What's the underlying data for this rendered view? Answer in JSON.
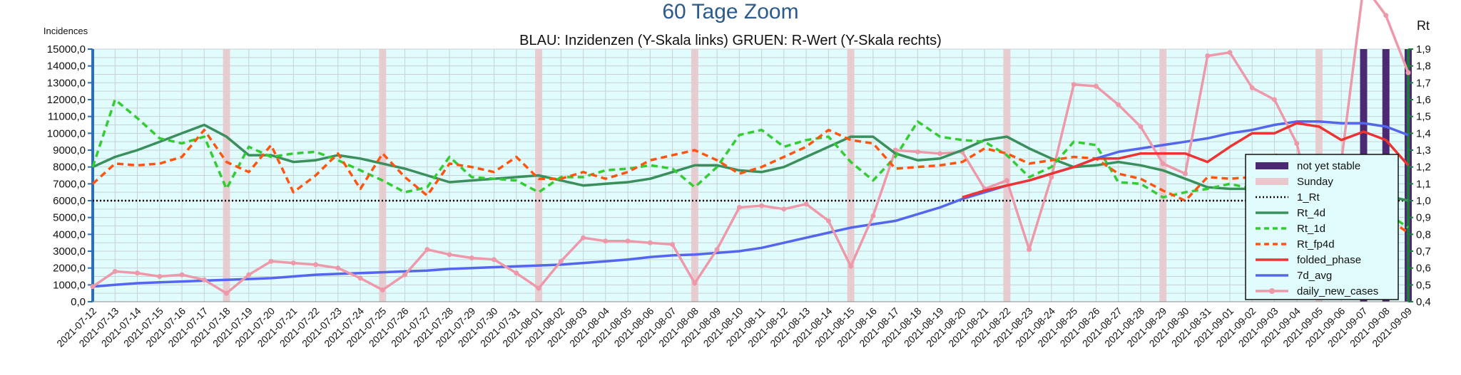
{
  "chart_data": {
    "type": "line",
    "title": "60 Tage Zoom",
    "subtitle": "BLAU: Inzidenzen (Y-Skala links)     GRUEN: R-Wert (Y-Skala rechts)",
    "ylabel_left": "Incidences",
    "ylabel_right": "Rt",
    "ylim_left": [
      0,
      15000
    ],
    "ylim_right": [
      0.4,
      1.9
    ],
    "y_ticks_left": [
      "0,0",
      "1000,0",
      "2000,0",
      "3000,0",
      "4000,0",
      "5000,0",
      "6000,0",
      "7000,0",
      "8000,0",
      "9000,0",
      "10000,0",
      "11000,0",
      "12000,0",
      "13000,0",
      "14000,0",
      "15000,0"
    ],
    "y_ticks_right": [
      "0,4",
      "0,5",
      "0,6",
      "0,7",
      "0,8",
      "0,9",
      "1,0",
      "1,1",
      "1,2",
      "1,3",
      "1,4",
      "1,5",
      "1,6",
      "1,7",
      "1,8",
      "1,9"
    ],
    "categories": [
      "2021-07-12",
      "2021-07-13",
      "2021-07-14",
      "2021-07-15",
      "2021-07-16",
      "2021-07-17",
      "2021-07-18",
      "2021-07-19",
      "2021-07-20",
      "2021-07-21",
      "2021-07-22",
      "2021-07-23",
      "2021-07-24",
      "2021-07-25",
      "2021-07-26",
      "2021-07-27",
      "2021-07-28",
      "2021-07-29",
      "2021-07-30",
      "2021-07-31",
      "2021-08-01",
      "2021-08-02",
      "2021-08-03",
      "2021-08-04",
      "2021-08-05",
      "2021-08-06",
      "2021-08-07",
      "2021-08-08",
      "2021-08-09",
      "2021-08-10",
      "2021-08-11",
      "2021-08-12",
      "2021-08-13",
      "2021-08-14",
      "2021-08-15",
      "2021-08-16",
      "2021-08-17",
      "2021-08-18",
      "2021-08-19",
      "2021-08-20",
      "2021-08-21",
      "2021-08-22",
      "2021-08-23",
      "2021-08-24",
      "2021-08-25",
      "2021-08-26",
      "2021-08-27",
      "2021-08-28",
      "2021-08-29",
      "2021-08-30",
      "2021-08-31",
      "2021-09-01",
      "2021-09-02",
      "2021-09-03",
      "2021-09-04",
      "2021-09-05",
      "2021-09-06",
      "2021-09-07",
      "2021-09-08",
      "2021-09-09"
    ],
    "sundays": [
      "2021-07-18",
      "2021-07-25",
      "2021-08-01",
      "2021-08-08",
      "2021-08-15",
      "2021-08-22",
      "2021-08-29",
      "2021-09-05"
    ],
    "not_yet_stable": [
      "2021-09-07",
      "2021-09-08",
      "2021-09-09"
    ],
    "legend_position": "right",
    "grid": true,
    "series": [
      {
        "name": "not yet stable",
        "axis": "none",
        "style": "band",
        "color": "#4b2a73"
      },
      {
        "name": "Sunday",
        "axis": "none",
        "style": "band",
        "color": "#e8c8cc"
      },
      {
        "name": "1_Rt",
        "axis": "right",
        "style": "dotted",
        "color": "#000000",
        "values": [
          1,
          1,
          1,
          1,
          1,
          1,
          1,
          1,
          1,
          1,
          1,
          1,
          1,
          1,
          1,
          1,
          1,
          1,
          1,
          1,
          1,
          1,
          1,
          1,
          1,
          1,
          1,
          1,
          1,
          1,
          1,
          1,
          1,
          1,
          1,
          1,
          1,
          1,
          1,
          1,
          1,
          1,
          1,
          1,
          1,
          1,
          1,
          1,
          1,
          1,
          1,
          1,
          1,
          1,
          1,
          1,
          1,
          1,
          1,
          1
        ]
      },
      {
        "name": "Rt_4d",
        "axis": "right",
        "style": "solid",
        "color": "#3a8f5c",
        "values": [
          1.2,
          1.26,
          1.3,
          1.35,
          1.4,
          1.45,
          1.38,
          1.27,
          1.27,
          1.23,
          1.24,
          1.27,
          1.25,
          1.22,
          1.19,
          1.15,
          1.11,
          1.12,
          1.13,
          1.14,
          1.15,
          1.12,
          1.09,
          1.1,
          1.11,
          1.13,
          1.17,
          1.21,
          1.21,
          1.18,
          1.17,
          1.2,
          1.26,
          1.32,
          1.38,
          1.38,
          1.28,
          1.24,
          1.25,
          1.3,
          1.36,
          1.38,
          1.31,
          1.25,
          1.2,
          1.21,
          1.23,
          1.21,
          1.18,
          1.13,
          1.08,
          1.07,
          1.07,
          1.07,
          1.09,
          1.07,
          1.06,
          1.04,
          1.03,
          1.0
        ]
      },
      {
        "name": "Rt_1d",
        "axis": "right",
        "style": "dashed",
        "color": "#33cc33",
        "values": [
          1.2,
          1.6,
          1.49,
          1.37,
          1.34,
          1.38,
          1.07,
          1.32,
          1.26,
          1.28,
          1.29,
          1.24,
          1.18,
          1.12,
          1.05,
          1.08,
          1.26,
          1.14,
          1.13,
          1.12,
          1.05,
          1.14,
          1.14,
          1.18,
          1.19,
          1.21,
          1.19,
          1.08,
          1.2,
          1.39,
          1.42,
          1.32,
          1.36,
          1.38,
          1.23,
          1.12,
          1.26,
          1.47,
          1.38,
          1.36,
          1.35,
          1.27,
          1.14,
          1.2,
          1.35,
          1.33,
          1.11,
          1.1,
          1.02,
          1.05,
          1.07,
          1.1,
          1.07,
          1.08,
          1.07,
          1.05,
          1.0,
          0.99,
          0.93,
          0.84
        ]
      },
      {
        "name": "Rt_fp4d",
        "axis": "right",
        "style": "dashed",
        "color": "#ff5511",
        "values": [
          1.1,
          1.22,
          1.21,
          1.22,
          1.26,
          1.42,
          1.23,
          1.17,
          1.33,
          1.05,
          1.15,
          1.28,
          1.07,
          1.28,
          1.14,
          1.03,
          1.22,
          1.2,
          1.17,
          1.26,
          1.13,
          1.13,
          1.17,
          1.13,
          1.17,
          1.24,
          1.27,
          1.3,
          1.24,
          1.16,
          1.2,
          1.26,
          1.32,
          1.42,
          1.36,
          1.34,
          1.19,
          1.2,
          1.21,
          1.23,
          1.31,
          1.28,
          1.22,
          1.24,
          1.26,
          1.25,
          1.16,
          1.13,
          1.06,
          1.0,
          1.14,
          1.13,
          1.14,
          1.28,
          1.17,
          1.02,
          0.97,
          0.96,
          0.9,
          0.81
        ]
      },
      {
        "name": "folded_phase",
        "axis": "left",
        "style": "solid",
        "color": "#ee3333",
        "values": [
          null,
          null,
          null,
          null,
          null,
          null,
          null,
          null,
          null,
          null,
          null,
          null,
          null,
          null,
          null,
          null,
          null,
          null,
          null,
          null,
          null,
          null,
          null,
          null,
          null,
          null,
          null,
          null,
          null,
          null,
          null,
          null,
          null,
          null,
          null,
          null,
          null,
          null,
          null,
          6200,
          6600,
          6900,
          7200,
          7600,
          8000,
          8500,
          8500,
          8800,
          8800,
          8800,
          8300,
          9200,
          10000,
          10000,
          10600,
          10400,
          9600,
          10100,
          9600,
          8100
        ]
      },
      {
        "name": "7d_avg",
        "axis": "left",
        "style": "solid",
        "color": "#5566ee",
        "values": [
          900,
          1000,
          1100,
          1150,
          1200,
          1250,
          1300,
          1350,
          1400,
          1500,
          1600,
          1650,
          1700,
          1750,
          1800,
          1850,
          1950,
          2000,
          2050,
          2100,
          2150,
          2200,
          2300,
          2400,
          2500,
          2650,
          2750,
          2800,
          2900,
          3000,
          3200,
          3500,
          3800,
          4100,
          4400,
          4600,
          4800,
          5200,
          5600,
          6100,
          6500,
          6900,
          7200,
          7600,
          8000,
          8500,
          8900,
          9100,
          9300,
          9500,
          9700,
          10000,
          10200,
          10500,
          10700,
          10700,
          10600,
          10600,
          10400,
          9900
        ]
      },
      {
        "name": "daily_new_cases",
        "axis": "left",
        "style": "marker-line",
        "color": "#ee99aa",
        "values": [
          900,
          1800,
          1700,
          1500,
          1600,
          1300,
          500,
          1600,
          2400,
          2300,
          2200,
          2000,
          1400,
          700,
          1600,
          3100,
          2800,
          2600,
          2500,
          1700,
          800,
          2400,
          3800,
          3600,
          3600,
          3500,
          3400,
          1100,
          3100,
          5600,
          5700,
          5500,
          5800,
          4800,
          2100,
          5100,
          9000,
          8900,
          8800,
          8900,
          6700,
          7200,
          3100,
          7400,
          12900,
          12800,
          11700,
          10400,
          8200,
          7600,
          14600,
          14800,
          12700,
          12000,
          9400,
          4000,
          8300,
          18800,
          17000,
          13600
        ]
      }
    ]
  }
}
